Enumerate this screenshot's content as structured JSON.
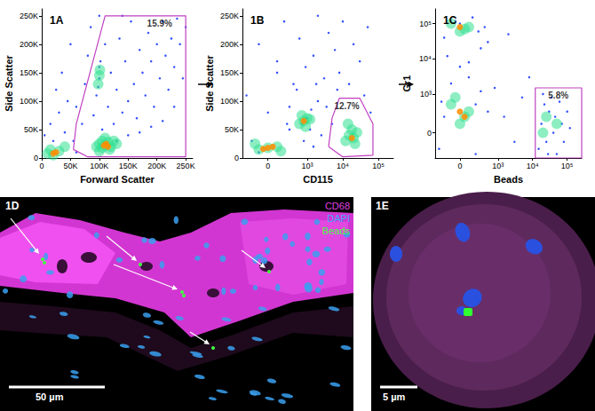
{
  "chart_data": [
    {
      "type": "scatter",
      "title": "1A",
      "xlabel": "Forward Scatter",
      "ylabel": "Side Scatter",
      "xlim": [
        0,
        262144
      ],
      "ylim": [
        0,
        262144
      ],
      "xticks": [
        0,
        {
          "value": 50000,
          "label": "50K"
        },
        {
          "value": 100000,
          "label": "100K"
        },
        {
          "value": 150000,
          "label": "150K"
        },
        {
          "value": 200000,
          "label": "200K"
        },
        {
          "value": 250000,
          "label": "250K"
        }
      ],
      "yticks": [
        0,
        {
          "value": 50000,
          "label": "50K"
        },
        {
          "value": 100000,
          "label": "100K"
        },
        {
          "value": 150000,
          "label": "150K"
        },
        {
          "value": 200000,
          "label": "200K"
        },
        {
          "value": 250000,
          "label": "250K"
        }
      ],
      "grid": false,
      "series": [
        {
          "color": "#1a3cff",
          "values": [
            [
              5000,
              40000
            ],
            [
              15000,
              60000
            ],
            [
              20000,
              30000
            ],
            [
              30000,
              80000
            ],
            [
              25000,
              120000
            ],
            [
              40000,
              45000
            ],
            [
              45000,
              100000
            ],
            [
              35000,
              150000
            ],
            [
              50000,
              200000
            ],
            [
              60000,
              90000
            ],
            [
              70000,
              60000
            ],
            [
              75000,
              130000
            ],
            [
              80000,
              180000
            ],
            [
              85000,
              230000
            ],
            [
              90000,
              75000
            ],
            [
              95000,
              110000
            ],
            [
              100000,
              140000
            ],
            [
              100000,
              160000
            ],
            [
              102000,
              170000
            ],
            [
              98000,
              125000
            ],
            [
              105000,
              50000
            ],
            [
              110000,
              200000
            ],
            [
              115000,
              90000
            ],
            [
              120000,
              150000
            ],
            [
              125000,
              60000
            ],
            [
              130000,
              120000
            ],
            [
              135000,
              210000
            ],
            [
              140000,
              80000
            ],
            [
              145000,
              170000
            ],
            [
              150000,
              100000
            ],
            [
              155000,
              240000
            ],
            [
              160000,
              130000
            ],
            [
              165000,
              70000
            ],
            [
              170000,
              190000
            ],
            [
              175000,
              150000
            ],
            [
              180000,
              110000
            ],
            [
              185000,
              220000
            ],
            [
              190000,
              170000
            ],
            [
              195000,
              90000
            ],
            [
              200000,
              200000
            ],
            [
              205000,
              140000
            ],
            [
              210000,
              240000
            ],
            [
              215000,
              180000
            ],
            [
              220000,
              120000
            ],
            [
              225000,
              210000
            ],
            [
              230000,
              160000
            ],
            [
              235000,
              245000
            ],
            [
              240000,
              200000
            ],
            [
              245000,
              140000
            ],
            [
              250000,
              230000
            ],
            [
              130000,
              30000
            ],
            [
              150000,
              40000
            ],
            [
              170000,
              45000
            ],
            [
              190000,
              55000
            ],
            [
              210000,
              65000
            ],
            [
              60000,
              10000
            ],
            [
              55000,
              30000
            ],
            [
              140000,
              250000
            ],
            [
              100000,
              250000
            ],
            [
              230000,
              90000
            ]
          ]
        },
        {
          "color": "#30e090",
          "values": [
            [
              95000,
              20000
            ],
            [
              100000,
              25000
            ],
            [
              105000,
              18000
            ],
            [
              110000,
              22000
            ],
            [
              115000,
              28000
            ],
            [
              120000,
              20000
            ],
            [
              125000,
              30000
            ],
            [
              110000,
              35000
            ],
            [
              100000,
              12000
            ],
            [
              130000,
              25000
            ],
            [
              105000,
              30000
            ],
            [
              118000,
              15000
            ],
            [
              98000,
              130000
            ],
            [
              100000,
              145000
            ],
            [
              101000,
              155000
            ],
            [
              10000,
              8000
            ],
            [
              20000,
              5000
            ],
            [
              30000,
              12000
            ],
            [
              15000,
              15000
            ],
            [
              40000,
              20000
            ]
          ]
        },
        {
          "color": "#ff8c00",
          "values": [
            [
              108000,
              22000
            ],
            [
              112000,
              25000
            ],
            [
              115000,
              20000
            ],
            [
              20000,
              8000
            ],
            [
              25000,
              10000
            ]
          ]
        }
      ],
      "gate": {
        "label": "15.9%",
        "color": "#c040c0",
        "points": [
          [
            55000,
            15000
          ],
          [
            60000,
            60000
          ],
          [
            110000,
            250000
          ],
          [
            250000,
            250000
          ],
          [
            250000,
            2000
          ],
          [
            80000,
            2000
          ],
          [
            55000,
            15000
          ]
        ]
      }
    },
    {
      "type": "scatter",
      "title": "1B",
      "xlabel": "CD115",
      "ylabel": "Side Scatter",
      "log": "x",
      "xlim": [
        -400,
        262144
      ],
      "ylim": [
        0,
        262144
      ],
      "xticks": [
        0,
        {
          "value": 1000,
          "label": "10³"
        },
        {
          "value": 10000,
          "label": "10⁴"
        },
        {
          "value": 100000,
          "label": "10⁵"
        }
      ],
      "yticks": [
        0,
        {
          "value": 50000,
          "label": "50K"
        },
        {
          "value": 100000,
          "label": "100K"
        },
        {
          "value": 150000,
          "label": "150K"
        },
        {
          "value": 200000,
          "label": "200K"
        },
        {
          "value": 250000,
          "label": "250K"
        }
      ],
      "grid": false,
      "series": [
        {
          "color": "#1a3cff",
          "values": [
            [
              -200,
              30000
            ],
            [
              0,
              80000
            ],
            [
              100,
              150000
            ],
            [
              -100,
              200000
            ],
            [
              200,
              240000
            ],
            [
              300,
              50000
            ],
            [
              500,
              120000
            ],
            [
              800,
              30000
            ],
            [
              1000,
              70000
            ],
            [
              1500,
              180000
            ],
            [
              2000,
              100000
            ],
            [
              700,
              60000
            ],
            [
              1200,
              50000
            ],
            [
              300,
              90000
            ],
            [
              400,
              130000
            ],
            [
              600,
              210000
            ],
            [
              900,
              160000
            ],
            [
              2500,
              40000
            ],
            [
              3000,
              140000
            ],
            [
              4000,
              220000
            ],
            [
              5000,
              60000
            ],
            [
              6000,
              190000
            ],
            [
              8000,
              150000
            ],
            [
              10000,
              240000
            ],
            [
              15000,
              130000
            ],
            [
              20000,
              200000
            ],
            [
              30000,
              170000
            ],
            [
              40000,
              110000
            ],
            [
              50000,
              230000
            ],
            [
              60000,
              80000
            ],
            [
              1500,
              20000
            ],
            [
              2000,
              250000
            ],
            [
              -300,
              110000
            ],
            [
              -100,
              10000
            ],
            [
              100,
              170000
            ],
            [
              250,
              60000
            ],
            [
              1300,
              85000
            ],
            [
              1800,
              130000
            ],
            [
              3500,
              90000
            ],
            [
              7000,
              120000
            ]
          ]
        },
        {
          "color": "#30e090",
          "values": [
            [
              -100,
              15000
            ],
            [
              0,
              18000
            ],
            [
              100,
              20000
            ],
            [
              150,
              12000
            ],
            [
              -150,
              25000
            ],
            [
              600,
              60000
            ],
            [
              800,
              65000
            ],
            [
              1000,
              70000
            ],
            [
              700,
              75000
            ],
            [
              900,
              55000
            ],
            [
              1200,
              68000
            ],
            [
              12000,
              30000
            ],
            [
              15000,
              40000
            ],
            [
              20000,
              35000
            ],
            [
              18000,
              50000
            ],
            [
              25000,
              45000
            ],
            [
              14000,
              60000
            ],
            [
              22000,
              25000
            ]
          ]
        },
        {
          "color": "#ff8c00",
          "values": [
            [
              0,
              18000
            ],
            [
              50,
              20000
            ],
            [
              -50,
              16000
            ],
            [
              800,
              65000
            ],
            [
              18000,
              35000
            ]
          ]
        }
      ],
      "gate": {
        "label": "12.7%",
        "color": "#c040c0",
        "points": [
          [
            4000,
            20000
          ],
          [
            5000,
            70000
          ],
          [
            8000,
            105000
          ],
          [
            30000,
            105000
          ],
          [
            70000,
            60000
          ],
          [
            70000,
            5000
          ],
          [
            10000,
            2000
          ],
          [
            4000,
            20000
          ]
        ]
      }
    },
    {
      "type": "scatter",
      "title": "1C",
      "xlabel": "Beads",
      "ylabel": "Gr1",
      "log": true,
      "xlim": [
        -400,
        262144
      ],
      "ylim": [
        -400,
        262144
      ],
      "xticks": [
        0,
        {
          "value": 1000,
          "label": "10³"
        },
        {
          "value": 10000,
          "label": "10⁴"
        },
        {
          "value": 100000,
          "label": "10⁵"
        }
      ],
      "yticks": [
        0,
        {
          "value": 1000,
          "label": "10³"
        },
        {
          "value": 10000,
          "label": "10⁴"
        },
        {
          "value": 100000,
          "label": "10⁵"
        }
      ],
      "grid": false,
      "series": [
        {
          "color": "#1a3cff",
          "values": [
            [
              -300,
              -200
            ],
            [
              200,
              500
            ],
            [
              -100,
              2000
            ],
            [
              100,
              8000
            ],
            [
              300,
              20000
            ],
            [
              -200,
              40000
            ],
            [
              0,
              100000
            ],
            [
              150,
              150000
            ],
            [
              500,
              300
            ],
            [
              800,
              1500
            ],
            [
              1500,
              200
            ],
            [
              3000,
              -100
            ],
            [
              5000,
              800
            ],
            [
              200,
              -300
            ],
            [
              -250,
              600
            ],
            [
              100,
              3000
            ],
            [
              0,
              6000
            ],
            [
              -150,
              12000
            ],
            [
              250,
              60000
            ],
            [
              -50,
              120000
            ],
            [
              400,
              80000
            ],
            [
              2000,
              50000
            ],
            [
              8000,
              3000
            ],
            [
              500,
              30000
            ],
            [
              -200,
              200
            ],
            [
              300,
              1200
            ],
            [
              15000,
              -200
            ],
            [
              18000,
              100
            ],
            [
              22000,
              500
            ],
            [
              25000,
              -100
            ],
            [
              30000,
              300
            ],
            [
              35000,
              800
            ],
            [
              40000,
              0
            ],
            [
              45000,
              200
            ],
            [
              50000,
              -300
            ],
            [
              60000,
              600
            ],
            [
              70000,
              100
            ],
            [
              80000,
              -100
            ],
            [
              100000,
              300
            ],
            [
              120000,
              50
            ],
            [
              20000,
              1000
            ],
            [
              28000,
              -300
            ]
          ]
        },
        {
          "color": "#30e090",
          "values": [
            [
              0,
              100
            ],
            [
              100,
              300
            ],
            [
              -100,
              500
            ],
            [
              50,
              200
            ],
            [
              -50,
              800
            ],
            [
              0,
              60000
            ],
            [
              100,
              80000
            ],
            [
              -100,
              100000
            ],
            [
              50,
              70000
            ],
            [
              20000,
              0
            ],
            [
              25000,
              200
            ],
            [
              50000,
              100
            ]
          ]
        },
        {
          "color": "#ff8c00",
          "values": [
            [
              0,
              300
            ],
            [
              50,
              200
            ],
            [
              0,
              80000
            ]
          ]
        }
      ],
      "gate": {
        "label": "5.8%",
        "color": "#c040c0",
        "points": [
          [
            12000,
            -400
          ],
          [
            12000,
            1500
          ],
          [
            262144,
            1500
          ],
          [
            262144,
            -400
          ],
          [
            12000,
            -400
          ]
        ]
      }
    }
  ],
  "images": [
    {
      "label": "1D",
      "legend": [
        {
          "text": "CD68",
          "color": "#e040e0"
        },
        {
          "text": "DAPI",
          "color": "#40a8ff"
        },
        {
          "text": "Beads",
          "color": "#40ff40"
        }
      ],
      "scale_bar": "50 µm"
    },
    {
      "label": "1E",
      "scale_bar": "5 µm"
    }
  ]
}
